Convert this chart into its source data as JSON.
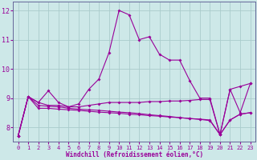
{
  "xlabel": "Windchill (Refroidissement éolien,°C)",
  "bg_color": "#cde8e8",
  "grid_color": "#aacccc",
  "line_color": "#990099",
  "spine_color": "#666699",
  "xlim": [
    -0.5,
    23.5
  ],
  "ylim": [
    7.5,
    12.3
  ],
  "xticks": [
    0,
    1,
    2,
    3,
    4,
    5,
    6,
    7,
    8,
    9,
    10,
    11,
    12,
    13,
    14,
    15,
    16,
    17,
    18,
    19,
    20,
    21,
    22,
    23
  ],
  "yticks": [
    8,
    9,
    10,
    11,
    12
  ],
  "s1_x": [
    0,
    1,
    2,
    3,
    4,
    5,
    6,
    7,
    8,
    9,
    10,
    11,
    12,
    13,
    14,
    15,
    16,
    17,
    18,
    19,
    20,
    21,
    22,
    23
  ],
  "s1_y": [
    7.7,
    9.05,
    8.85,
    9.25,
    8.85,
    8.7,
    8.8,
    9.3,
    9.65,
    10.55,
    12.0,
    11.85,
    11.0,
    11.1,
    10.5,
    10.3,
    10.3,
    9.6,
    9.0,
    9.0,
    7.75,
    9.3,
    8.5,
    9.5
  ],
  "s2_x": [
    0,
    1,
    2,
    3,
    4,
    5,
    6,
    7,
    8,
    9,
    10,
    11,
    12,
    13,
    14,
    15,
    16,
    17,
    18,
    19,
    20,
    21,
    22,
    23
  ],
  "s2_y": [
    7.7,
    9.05,
    8.85,
    8.75,
    8.75,
    8.7,
    8.7,
    8.75,
    8.8,
    8.85,
    8.85,
    8.85,
    8.85,
    8.88,
    8.88,
    8.9,
    8.9,
    8.92,
    8.95,
    8.95,
    7.75,
    9.3,
    9.4,
    9.5
  ],
  "s3_x": [
    0,
    1,
    2,
    3,
    4,
    5,
    6,
    7,
    8,
    9,
    10,
    11,
    12,
    13,
    14,
    15,
    16,
    17,
    18,
    19,
    20,
    21,
    22,
    23
  ],
  "s3_y": [
    7.7,
    9.05,
    8.65,
    8.65,
    8.62,
    8.6,
    8.58,
    8.55,
    8.52,
    8.5,
    8.48,
    8.45,
    8.43,
    8.4,
    8.38,
    8.35,
    8.33,
    8.3,
    8.28,
    8.25,
    7.75,
    8.25,
    8.45,
    8.5
  ],
  "s4_x": [
    0,
    1,
    2,
    3,
    4,
    5,
    6,
    7,
    8,
    9,
    10,
    11,
    12,
    13,
    14,
    15,
    16,
    17,
    18,
    19,
    20,
    21,
    22,
    23
  ],
  "s4_y": [
    7.7,
    9.05,
    8.75,
    8.72,
    8.7,
    8.65,
    8.62,
    8.6,
    8.58,
    8.55,
    8.52,
    8.5,
    8.47,
    8.43,
    8.4,
    8.37,
    8.33,
    8.3,
    8.27,
    8.23,
    7.75,
    8.25,
    8.45,
    8.5
  ]
}
